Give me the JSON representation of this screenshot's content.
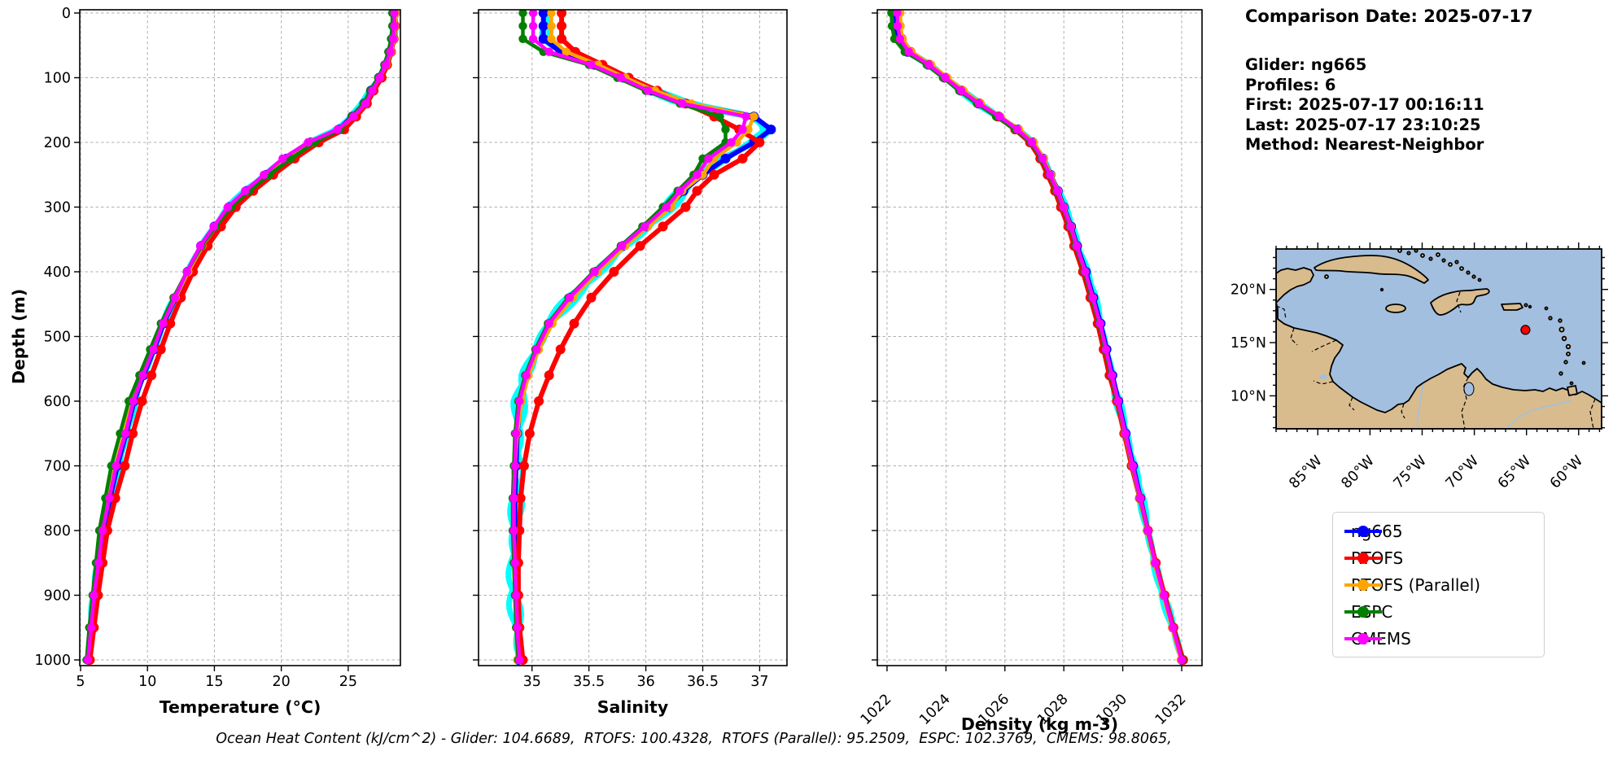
{
  "info_panel": {
    "title": "Comparison Date: 2025-07-17",
    "lines": [
      "Glider: ng665",
      "Profiles: 6",
      "First: 2025-07-17 00:16:11",
      "Last: 2025-07-17 23:10:25",
      "Method: Nearest-Neighbor"
    ]
  },
  "footer": {
    "ohc_text": "Ocean Heat Content (kJ/cm^2) - Glider: 104.6689,  RTOFS: 100.4328,  RTOFS (Parallel): 95.2509,  ESPC: 102.3769,  CMEMS: 98.8065,"
  },
  "legend": {
    "entries": [
      {
        "label": "ng665",
        "color": "#0000ff"
      },
      {
        "label": "RTOFS",
        "color": "#ff0000"
      },
      {
        "label": "RTOFS (Parallel)",
        "color": "#ffa500"
      },
      {
        "label": "ESPC",
        "color": "#008000"
      },
      {
        "label": "CMEMS",
        "color": "#ff00ff"
      }
    ]
  },
  "map": {
    "extent": {
      "lon_min": -89.0,
      "lon_max": -57.8,
      "lat_min": 6.9,
      "lat_max": 23.8
    },
    "lat_ticks": [
      {
        "value": 20,
        "label": "20°N"
      },
      {
        "value": 15,
        "label": "15°N"
      },
      {
        "value": 10,
        "label": "10°N"
      }
    ],
    "lon_ticks": [
      {
        "value": -85,
        "label": "85°W"
      },
      {
        "value": -80,
        "label": "80°W"
      },
      {
        "value": -75,
        "label": "75°W"
      },
      {
        "value": -70,
        "label": "70°W"
      },
      {
        "value": -65,
        "label": "65°W"
      },
      {
        "value": -60,
        "label": "60°W"
      }
    ],
    "marker": {
      "lon": -65.1,
      "lat": 16.2,
      "color": "#ff0000"
    },
    "land_color": "#d8bc8e",
    "ocean_color": "#a3bfdf",
    "coast_color": "#000000"
  },
  "chart_data": [
    {
      "type": "line",
      "xlabel": "Temperature (°C)",
      "ylabel": "Depth (m)",
      "xlim": [
        4.94,
        28.9
      ],
      "ylim": [
        0,
        1000
      ],
      "xticks": [
        5,
        10,
        15,
        20,
        25
      ],
      "yticks": [
        0,
        100,
        200,
        300,
        400,
        500,
        600,
        700,
        800,
        900,
        1000
      ],
      "xtick_rotation": 0,
      "grid": true,
      "depths": [
        0,
        20,
        40,
        60,
        80,
        100,
        120,
        140,
        160,
        180,
        200,
        225,
        250,
        275,
        300,
        330,
        360,
        400,
        440,
        480,
        520,
        560,
        600,
        650,
        700,
        750,
        800,
        850,
        900,
        950,
        1000
      ],
      "scatter": {
        "name": "glider-raw",
        "color": "#00ffff",
        "amplitude": 0.18
      },
      "series": [
        {
          "name": "ng665",
          "color": "#0000ff",
          "lw": 6,
          "values": [
            28.4,
            28.4,
            28.3,
            28.1,
            27.8,
            27.3,
            26.7,
            26.2,
            25.3,
            24.3,
            22.2,
            20.4,
            18.9,
            17.4,
            16.1,
            15.0,
            14.0,
            13.0,
            12.1,
            11.2,
            10.5,
            9.7,
            9.0,
            8.4,
            7.75,
            7.2,
            6.7,
            6.4,
            6.1,
            5.85,
            5.6
          ]
        },
        {
          "name": "RTOFS",
          "color": "#ff0000",
          "lw": 6,
          "values": [
            28.5,
            28.5,
            28.4,
            28.2,
            27.9,
            27.5,
            26.9,
            26.4,
            25.6,
            24.7,
            22.8,
            21.0,
            19.4,
            17.9,
            16.6,
            15.5,
            14.5,
            13.4,
            12.5,
            11.7,
            11.0,
            10.3,
            9.6,
            8.9,
            8.3,
            7.6,
            7.0,
            6.65,
            6.3,
            6.0,
            5.7
          ]
        },
        {
          "name": "RTOFS (Parallel)",
          "color": "#ffa500",
          "lw": 4.5,
          "values": [
            28.55,
            28.5,
            28.4,
            28.2,
            27.85,
            27.35,
            26.75,
            26.25,
            25.35,
            24.35,
            22.3,
            20.5,
            19.0,
            17.5,
            16.2,
            15.1,
            14.1,
            13.05,
            12.1,
            11.15,
            10.4,
            9.6,
            8.85,
            8.25,
            7.6,
            7.05,
            6.55,
            6.25,
            5.95,
            5.75,
            5.5
          ]
        },
        {
          "name": "ESPC",
          "color": "#008000",
          "lw": 4.5,
          "values": [
            28.3,
            28.3,
            28.2,
            28.0,
            27.7,
            27.25,
            26.65,
            26.15,
            25.25,
            24.4,
            22.5,
            20.7,
            19.1,
            17.6,
            16.25,
            15.1,
            14.05,
            12.95,
            11.95,
            11.0,
            10.2,
            9.4,
            8.6,
            7.95,
            7.3,
            6.85,
            6.4,
            6.15,
            5.9,
            5.65,
            5.45
          ]
        },
        {
          "name": "CMEMS",
          "color": "#ff00ff",
          "lw": 4.5,
          "values": [
            28.45,
            28.45,
            28.35,
            28.15,
            27.8,
            27.35,
            26.8,
            26.3,
            25.4,
            24.2,
            22.0,
            20.1,
            18.7,
            17.3,
            16.0,
            14.95,
            13.95,
            12.95,
            12.05,
            11.15,
            10.45,
            9.65,
            8.95,
            8.35,
            7.65,
            7.15,
            6.65,
            6.35,
            6.0,
            5.8,
            5.55
          ]
        }
      ]
    },
    {
      "type": "line",
      "xlabel": "Salinity",
      "ylabel": null,
      "xlim": [
        34.53,
        37.24
      ],
      "ylim": [
        0,
        1000
      ],
      "xticks": [
        35.0,
        35.5,
        36.0,
        36.5,
        37.0
      ],
      "yticks": [
        0,
        100,
        200,
        300,
        400,
        500,
        600,
        700,
        800,
        900,
        1000
      ],
      "xtick_rotation": 0,
      "grid": true,
      "depths": [
        0,
        20,
        40,
        60,
        80,
        100,
        120,
        140,
        160,
        180,
        200,
        225,
        250,
        275,
        300,
        330,
        360,
        400,
        440,
        480,
        520,
        560,
        600,
        650,
        700,
        750,
        800,
        850,
        900,
        950,
        1000
      ],
      "scatter": {
        "name": "glider-raw",
        "color": "#00ffff",
        "amplitude": 0.055
      },
      "series": [
        {
          "name": "ng665",
          "color": "#0000ff",
          "lw": 6,
          "values": [
            35.1,
            35.1,
            35.1,
            35.25,
            35.55,
            35.8,
            36.05,
            36.35,
            36.95,
            37.1,
            36.95,
            36.7,
            36.5,
            36.33,
            36.2,
            36.0,
            35.8,
            35.56,
            35.34,
            35.16,
            35.05,
            34.96,
            34.9,
            34.87,
            34.86,
            34.85,
            34.85,
            34.85,
            34.86,
            34.87,
            34.88
          ]
        },
        {
          "name": "RTOFS",
          "color": "#ff0000",
          "lw": 6,
          "values": [
            35.26,
            35.26,
            35.26,
            35.38,
            35.62,
            35.85,
            36.1,
            36.35,
            36.6,
            36.82,
            37.0,
            36.85,
            36.6,
            36.45,
            36.35,
            36.15,
            35.95,
            35.72,
            35.52,
            35.37,
            35.25,
            35.15,
            35.06,
            34.98,
            34.93,
            34.9,
            34.89,
            34.88,
            34.88,
            34.89,
            34.92
          ]
        },
        {
          "name": "RTOFS (Parallel)",
          "color": "#ffa500",
          "lw": 4.5,
          "values": [
            35.17,
            35.17,
            35.17,
            35.3,
            35.58,
            35.82,
            36.08,
            36.4,
            36.95,
            36.9,
            36.8,
            36.6,
            36.5,
            36.32,
            36.22,
            36.02,
            35.82,
            35.58,
            35.36,
            35.18,
            35.06,
            34.97,
            34.91,
            34.87,
            34.85,
            34.84,
            34.84,
            34.84,
            34.85,
            34.86,
            34.87
          ]
        },
        {
          "name": "ESPC",
          "color": "#008000",
          "lw": 4.5,
          "values": [
            34.92,
            34.92,
            34.92,
            35.1,
            35.5,
            35.75,
            36.0,
            36.3,
            36.65,
            36.7,
            36.7,
            36.5,
            36.42,
            36.28,
            36.15,
            35.97,
            35.78,
            35.54,
            35.32,
            35.14,
            35.03,
            34.94,
            34.88,
            34.85,
            34.84,
            34.83,
            34.83,
            34.84,
            34.85,
            34.86,
            34.88
          ]
        },
        {
          "name": "CMEMS",
          "color": "#ff00ff",
          "lw": 4.5,
          "values": [
            35.01,
            35.01,
            35.01,
            35.15,
            35.52,
            35.78,
            36.02,
            36.32,
            36.88,
            36.85,
            36.75,
            36.55,
            36.45,
            36.3,
            36.18,
            35.99,
            35.79,
            35.55,
            35.33,
            35.15,
            35.04,
            34.95,
            34.89,
            34.86,
            34.85,
            34.84,
            34.84,
            34.85,
            34.86,
            34.87,
            34.89
          ]
        }
      ]
    },
    {
      "type": "line",
      "xlabel": "Density (kg m-3)",
      "ylabel": null,
      "xlim": [
        1021.67,
        1032.69
      ],
      "ylim": [
        0,
        1000
      ],
      "xticks": [
        1022,
        1024,
        1026,
        1028,
        1030,
        1032
      ],
      "yticks": [
        0,
        100,
        200,
        300,
        400,
        500,
        600,
        700,
        800,
        900,
        1000
      ],
      "xtick_rotation": 45,
      "grid": true,
      "depths": [
        0,
        20,
        40,
        60,
        80,
        100,
        120,
        140,
        160,
        180,
        200,
        225,
        250,
        275,
        300,
        330,
        360,
        400,
        440,
        480,
        520,
        560,
        600,
        650,
        700,
        750,
        800,
        850,
        900,
        950,
        1000
      ],
      "scatter": {
        "name": "glider-raw",
        "color": "#00ffff",
        "amplitude": 0.09
      },
      "series": [
        {
          "name": "ng665",
          "color": "#0000ff",
          "lw": 6,
          "values": [
            1022.3,
            1022.32,
            1022.4,
            1022.7,
            1023.4,
            1023.95,
            1024.5,
            1025.1,
            1025.8,
            1026.45,
            1026.95,
            1027.3,
            1027.55,
            1027.8,
            1028.0,
            1028.25,
            1028.45,
            1028.75,
            1029.0,
            1029.25,
            1029.45,
            1029.65,
            1029.85,
            1030.1,
            1030.35,
            1030.6,
            1030.85,
            1031.1,
            1031.4,
            1031.7,
            1032.0
          ]
        },
        {
          "name": "RTOFS",
          "color": "#ff0000",
          "lw": 6,
          "values": [
            1022.4,
            1022.42,
            1022.5,
            1022.8,
            1023.45,
            1024.0,
            1024.55,
            1025.15,
            1025.75,
            1026.35,
            1026.85,
            1027.2,
            1027.45,
            1027.7,
            1027.9,
            1028.15,
            1028.35,
            1028.65,
            1028.9,
            1029.15,
            1029.35,
            1029.55,
            1029.8,
            1030.05,
            1030.3,
            1030.58,
            1030.85,
            1031.12,
            1031.42,
            1031.72,
            1032.05
          ]
        },
        {
          "name": "RTOFS (Parallel)",
          "color": "#ffa500",
          "lw": 4.5,
          "values": [
            1022.45,
            1022.46,
            1022.52,
            1022.82,
            1023.5,
            1024.05,
            1024.6,
            1025.18,
            1025.85,
            1026.48,
            1026.98,
            1027.32,
            1027.56,
            1027.8,
            1028.0,
            1028.24,
            1028.44,
            1028.73,
            1028.98,
            1029.22,
            1029.42,
            1029.62,
            1029.82,
            1030.07,
            1030.32,
            1030.57,
            1030.82,
            1031.07,
            1031.37,
            1031.67,
            1031.97
          ]
        },
        {
          "name": "ESPC",
          "color": "#008000",
          "lw": 4.5,
          "values": [
            1022.15,
            1022.17,
            1022.25,
            1022.6,
            1023.35,
            1023.9,
            1024.45,
            1025.05,
            1025.7,
            1026.35,
            1026.88,
            1027.24,
            1027.5,
            1027.75,
            1027.96,
            1028.2,
            1028.4,
            1028.7,
            1028.95,
            1029.2,
            1029.4,
            1029.6,
            1029.82,
            1030.08,
            1030.33,
            1030.58,
            1030.84,
            1031.1,
            1031.4,
            1031.7,
            1032.02
          ]
        },
        {
          "name": "CMEMS",
          "color": "#ff00ff",
          "lw": 4.5,
          "values": [
            1022.35,
            1022.36,
            1022.44,
            1022.74,
            1023.42,
            1023.98,
            1024.52,
            1025.12,
            1025.82,
            1026.42,
            1026.92,
            1027.28,
            1027.53,
            1027.78,
            1027.98,
            1028.23,
            1028.43,
            1028.73,
            1028.98,
            1029.23,
            1029.43,
            1029.63,
            1029.84,
            1030.09,
            1030.34,
            1030.59,
            1030.85,
            1031.1,
            1031.4,
            1031.7,
            1032.0
          ]
        }
      ]
    }
  ]
}
